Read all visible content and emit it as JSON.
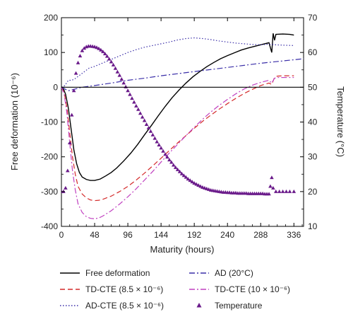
{
  "chart_data": {
    "type": "line",
    "title": "",
    "xlabel": "Maturity (hours)",
    "ylabel_left": "Free deformation (10⁻⁶)",
    "ylabel_right": "Temperature (°C)",
    "xlim": [
      0,
      350
    ],
    "ylim_left": [
      -400,
      200
    ],
    "ylim_right": [
      10,
      70
    ],
    "x_ticks": [
      "0",
      "48",
      "96",
      "144",
      "192",
      "240",
      "288",
      "336"
    ],
    "x_tick_values": [
      0,
      48,
      96,
      144,
      192,
      240,
      288,
      336
    ],
    "y_left_ticks": [
      "200",
      "100",
      "0",
      "-100",
      "-200",
      "-300",
      "-400"
    ],
    "y_left_tick_values": [
      200,
      100,
      0,
      -100,
      -200,
      -300,
      -400
    ],
    "y_right_ticks": [
      "70",
      "60",
      "50",
      "40",
      "30",
      "20",
      "10"
    ],
    "y_right_tick_values": [
      70,
      60,
      50,
      40,
      30,
      20,
      10
    ],
    "grid": false,
    "legend_position": "bottom",
    "series": [
      {
        "name": "Free deformation",
        "axis": "left",
        "color": "#000000",
        "style": "solid",
        "x": [
          0,
          3,
          6,
          10,
          14,
          18,
          22,
          26,
          30,
          36,
          42,
          48,
          56,
          64,
          72,
          80,
          90,
          100,
          110,
          120,
          130,
          140,
          150,
          160,
          170,
          180,
          190,
          200,
          210,
          220,
          230,
          240,
          250,
          260,
          270,
          280,
          290,
          300,
          304,
          306,
          308,
          310,
          320,
          330,
          336
        ],
        "y": [
          0,
          -5,
          -20,
          -60,
          -120,
          -180,
          -220,
          -245,
          -258,
          -265,
          -268,
          -268,
          -264,
          -255,
          -245,
          -232,
          -212,
          -190,
          -165,
          -137,
          -110,
          -82,
          -55,
          -30,
          -8,
          12,
          30,
          45,
          59,
          71,
          82,
          91,
          99,
          107,
          113,
          118,
          123,
          128,
          100,
          155,
          135,
          152,
          153,
          152,
          150
        ]
      },
      {
        "name": "AD (20°C)",
        "axis": "left",
        "color": "#3a2ea8",
        "style": "dashdot",
        "x": [
          0,
          10,
          20,
          30,
          48,
          72,
          96,
          120,
          144,
          168,
          192,
          216,
          240,
          264,
          288,
          312,
          336,
          350
        ],
        "y": [
          0,
          -10,
          -5,
          0,
          5,
          12,
          20,
          26,
          33,
          39,
          45,
          51,
          57,
          63,
          69,
          74,
          79,
          82
        ]
      },
      {
        "name": "TD-CTE (8.5 × 10⁻⁶)",
        "axis": "left",
        "color": "#d42a2a",
        "style": "dashed",
        "x": [
          0,
          4,
          8,
          12,
          16,
          20,
          24,
          30,
          36,
          42,
          48,
          54,
          60,
          72,
          84,
          96,
          108,
          120,
          132,
          144,
          156,
          168,
          180,
          192,
          204,
          216,
          228,
          240,
          252,
          264,
          276,
          288,
          300,
          304,
          308,
          312,
          320,
          330,
          336
        ],
        "y": [
          0,
          -15,
          -60,
          -130,
          -200,
          -250,
          -285,
          -307,
          -318,
          -324,
          -326,
          -325,
          -322,
          -313,
          -300,
          -285,
          -267,
          -247,
          -226,
          -204,
          -182,
          -160,
          -139,
          -118,
          -98,
          -80,
          -63,
          -47,
          -32,
          -18,
          -6,
          5,
          12,
          8,
          28,
          32,
          33,
          33,
          33
        ]
      },
      {
        "name": "TD-CTE (10 × 10⁻⁶)",
        "axis": "left",
        "color": "#c040c0",
        "style": "dashdot",
        "x": [
          0,
          4,
          8,
          12,
          16,
          20,
          24,
          30,
          36,
          42,
          48,
          54,
          60,
          72,
          84,
          96,
          108,
          120,
          132,
          144,
          156,
          168,
          180,
          192,
          204,
          216,
          228,
          240,
          252,
          264,
          276,
          288,
          300,
          304,
          308,
          312,
          320,
          330,
          336
        ],
        "y": [
          0,
          -20,
          -75,
          -160,
          -240,
          -295,
          -335,
          -360,
          -372,
          -377,
          -378,
          -376,
          -370,
          -355,
          -336,
          -315,
          -292,
          -267,
          -242,
          -215,
          -189,
          -164,
          -139,
          -115,
          -92,
          -71,
          -52,
          -35,
          -19,
          -5,
          6,
          14,
          20,
          12,
          26,
          28,
          28,
          28,
          28
        ]
      },
      {
        "name": "AD-CTE (8.5 × 10⁻⁶)",
        "axis": "left",
        "color": "#3a2ea8",
        "style": "dotted",
        "x": [
          0,
          5,
          10,
          15,
          20,
          30,
          40,
          48,
          60,
          72,
          84,
          96,
          108,
          120,
          132,
          144,
          156,
          168,
          180,
          192,
          204,
          216,
          228,
          240,
          252,
          264,
          276,
          288,
          300,
          310,
          320,
          336
        ],
        "y": [
          0,
          5,
          20,
          20,
          25,
          40,
          55,
          60,
          70,
          80,
          90,
          100,
          108,
          115,
          120,
          125,
          130,
          136,
          140,
          142,
          140,
          137,
          133,
          130,
          127,
          125,
          123,
          122,
          124,
          122,
          121,
          120
        ]
      },
      {
        "name": "Temperature",
        "axis": "right",
        "color": "#6a1a8a",
        "style": "triangle-markers",
        "x": [
          0,
          3,
          6,
          9,
          12,
          15,
          18,
          21,
          24,
          27,
          30,
          33,
          36,
          39,
          42,
          45,
          48,
          51,
          54,
          57,
          60,
          63,
          66,
          69,
          72,
          75,
          78,
          81,
          84,
          87,
          90,
          93,
          96,
          99,
          102,
          105,
          108,
          111,
          114,
          117,
          120,
          123,
          126,
          129,
          132,
          135,
          138,
          141,
          144,
          147,
          150,
          153,
          156,
          159,
          162,
          165,
          168,
          171,
          174,
          177,
          180,
          183,
          186,
          189,
          192,
          195,
          198,
          201,
          204,
          207,
          210,
          213,
          216,
          219,
          222,
          225,
          228,
          231,
          234,
          237,
          240,
          243,
          246,
          249,
          252,
          255,
          258,
          261,
          264,
          267,
          270,
          273,
          276,
          279,
          282,
          285,
          288,
          291,
          294,
          297,
          300,
          302,
          304,
          306,
          310,
          315,
          320,
          325,
          330,
          336
        ],
        "y": [
          20,
          20,
          21,
          26,
          34,
          42,
          49,
          54,
          57,
          59,
          60.5,
          61.2,
          61.6,
          61.8,
          61.8,
          61.7,
          61.6,
          61.4,
          61.1,
          60.7,
          60.2,
          59.6,
          58.9,
          58.1,
          57.3,
          56.4,
          55.4,
          54.4,
          53.4,
          52.3,
          51.2,
          50.1,
          49.0,
          47.9,
          46.8,
          45.7,
          44.6,
          43.6,
          42.5,
          41.4,
          40.4,
          39.3,
          38.3,
          37.3,
          36.3,
          35.3,
          34.3,
          33.4,
          32.5,
          31.6,
          30.7,
          29.9,
          29.1,
          28.4,
          27.6,
          26.9,
          26.3,
          25.7,
          25.1,
          24.6,
          24.1,
          23.6,
          23.2,
          22.8,
          22.4,
          22.1,
          21.8,
          21.5,
          21.2,
          21.0,
          20.8,
          20.6,
          20.4,
          20.3,
          20.2,
          20.1,
          20.0,
          19.9,
          19.8,
          19.8,
          19.7,
          19.7,
          19.6,
          19.6,
          19.6,
          19.5,
          19.5,
          19.5,
          19.5,
          19.5,
          19.4,
          19.4,
          19.4,
          19.4,
          19.4,
          19.4,
          19.4,
          19.4,
          19.3,
          19.3,
          19.3,
          21.5,
          24.0,
          21.0,
          20.0,
          20.0,
          20.0,
          20.0,
          20.0,
          20.0
        ]
      }
    ]
  }
}
